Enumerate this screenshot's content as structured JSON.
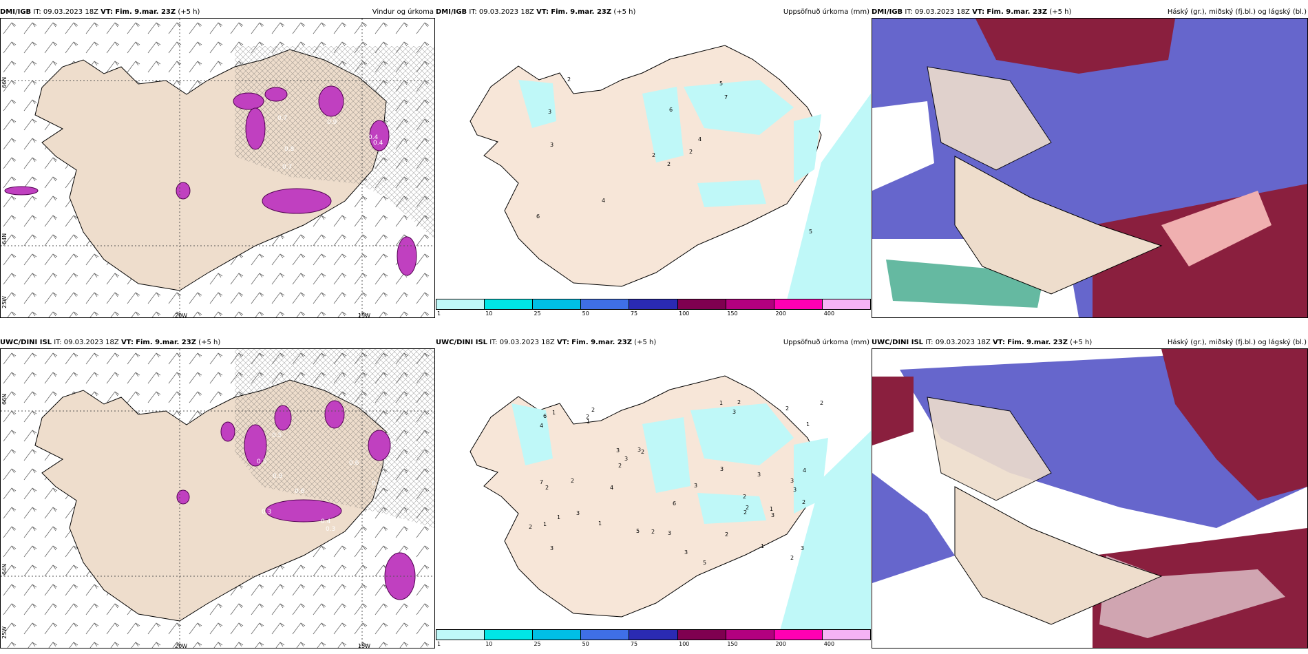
{
  "common": {
    "it_label": "IT:",
    "it": "09.03.2023 18Z",
    "vt_label": "VT:",
    "vt": "Fim. 9.mar. 23Z",
    "lead": "(+5 h)"
  },
  "rows": [
    {
      "model": "DMI/IGB"
    },
    {
      "model": "UWC/DINI ISL"
    }
  ],
  "titles": {
    "wind": "Vindur og úrkoma",
    "precip": "Uppsöfnuð úrkoma (mm)",
    "clouds": "Háský (gr.), miðský (fj.bl.) og lágský (bl.)"
  },
  "axes": {
    "lon20": "20W",
    "lon15": "15W",
    "lat66": "66N",
    "lat64": "64N",
    "lon25": "25W"
  },
  "colorbar": {
    "ticks": [
      "1",
      "10",
      "25",
      "50",
      "75",
      "100",
      "150",
      "200",
      "400"
    ],
    "colors": [
      "#bff8f8",
      "#00e6e6",
      "#00bfe6",
      "#3f6fe6",
      "#2a2ab3",
      "#7f0050",
      "#b3007f",
      "#ff00b3",
      "#f5b3f5"
    ]
  },
  "precip_top_labels": [
    "2",
    "3",
    "2",
    "6",
    "4",
    "4",
    "5",
    "6",
    "7",
    "2",
    "2",
    "5",
    "3"
  ],
  "precip_bottom_labels": [
    "2",
    "3",
    "3",
    "2",
    "2",
    "1",
    "1",
    "3",
    "3",
    "5",
    "4",
    "7",
    "6",
    "3",
    "5",
    "4",
    "6",
    "3",
    "3",
    "3",
    "2",
    "2",
    "2",
    "2",
    "1",
    "2",
    "2",
    "2",
    "1",
    "3",
    "3",
    "2",
    "3",
    "4",
    "3",
    "3",
    "2",
    "2",
    "3",
    "1",
    "1",
    "2",
    "2",
    "2",
    "1",
    "1",
    "2",
    "1",
    "3"
  ],
  "wind_top_labels": [
    "0.7",
    "0.4",
    "0.9",
    "0.4",
    "0.8",
    "0.6",
    "0.7"
  ],
  "wind_bottom_labels": [
    "0.3",
    "0.5",
    "0.3",
    "0.5",
    "0.6",
    "0.4",
    "0.5",
    "0.9",
    "0.6"
  ]
}
